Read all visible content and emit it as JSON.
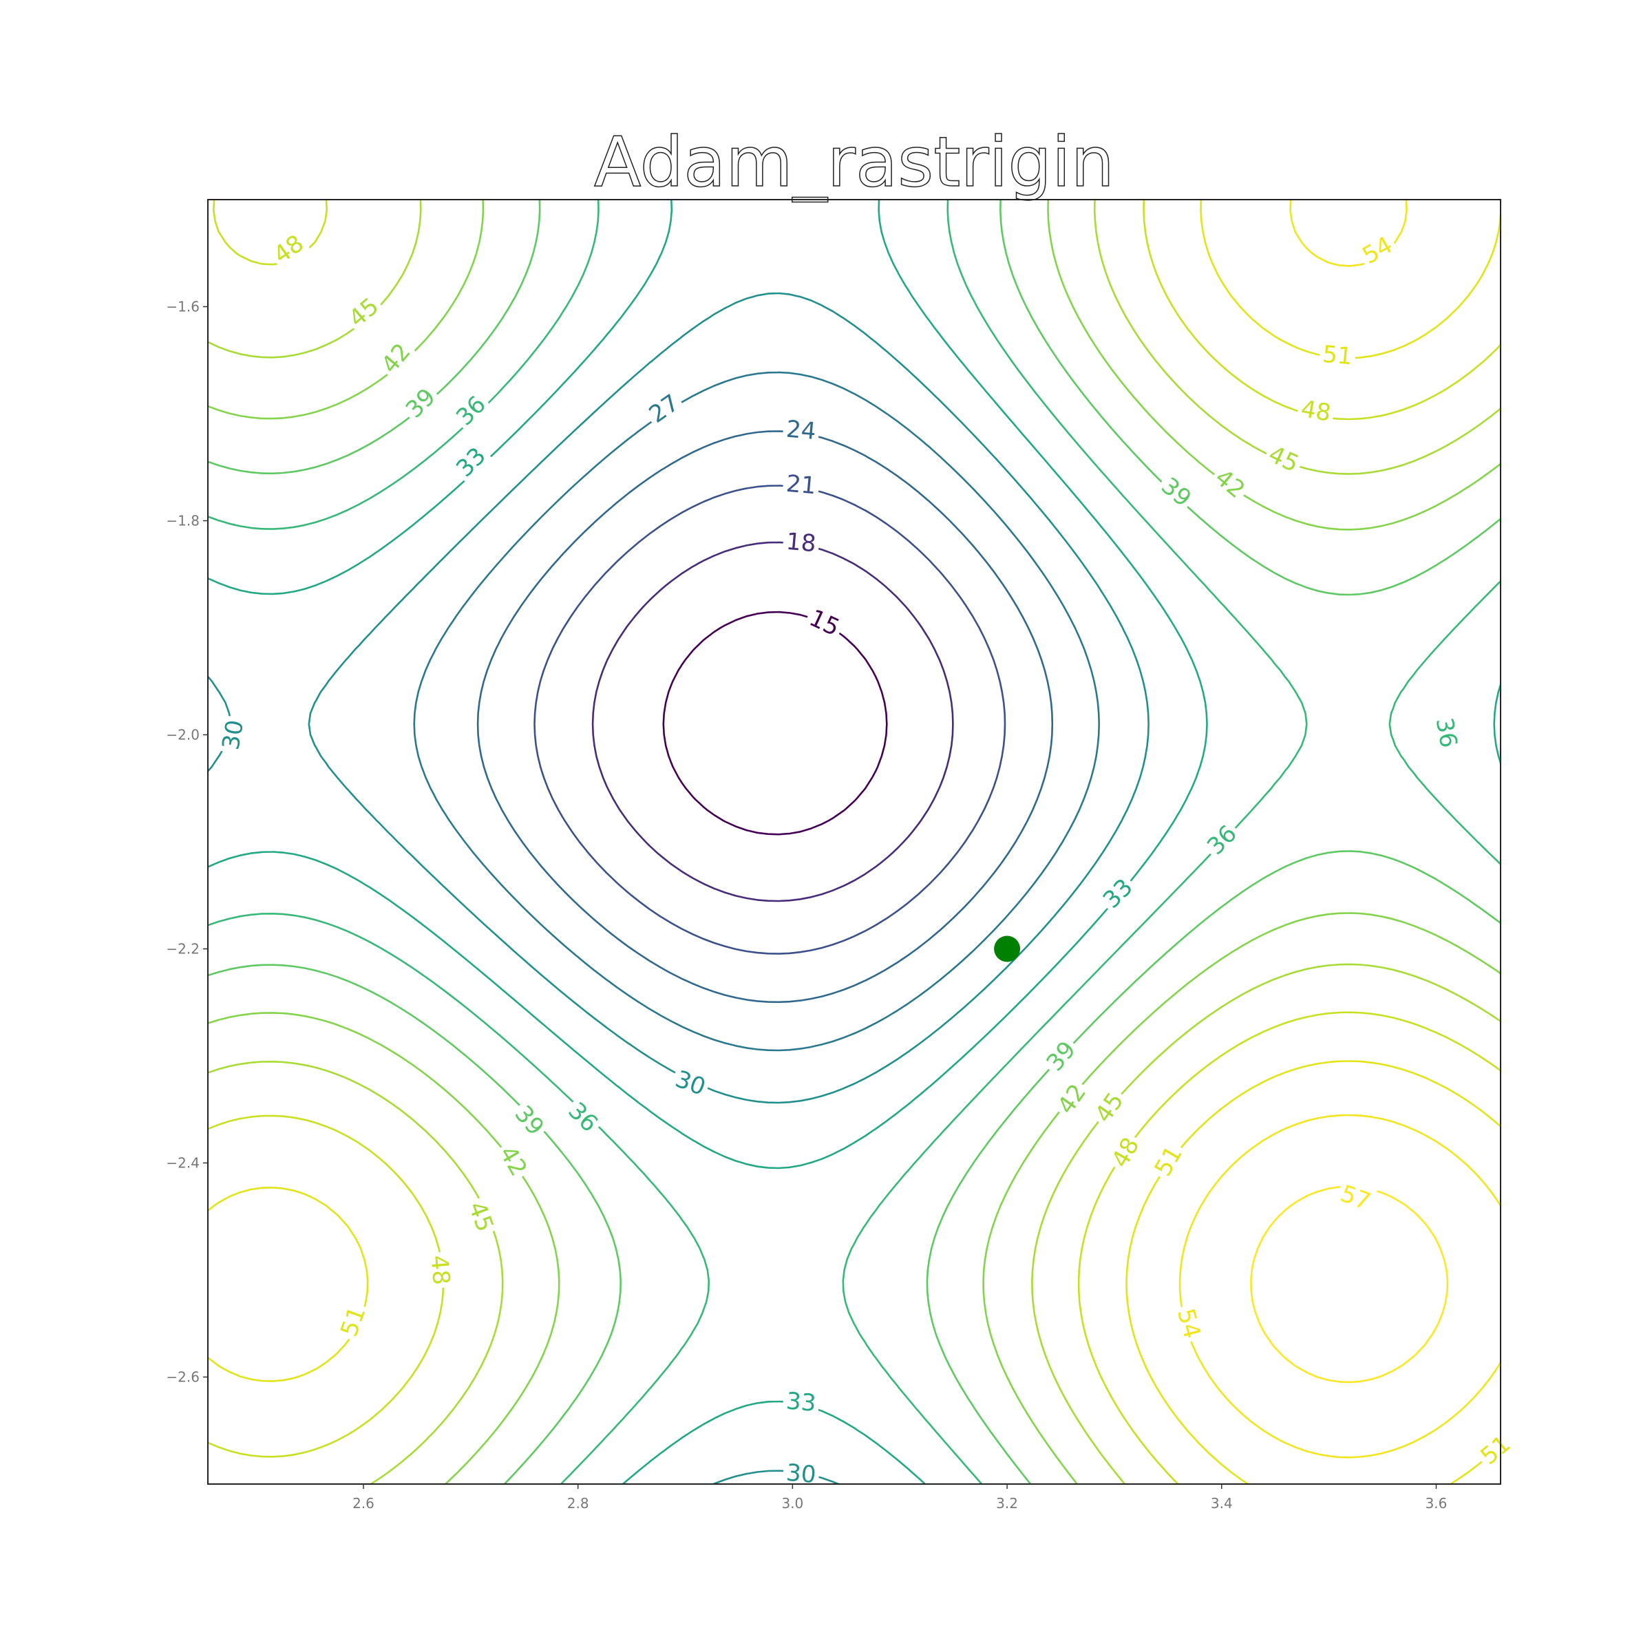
{
  "chart_data": {
    "type": "contour",
    "title": "Adam_rastrigin",
    "xlabel": "",
    "ylabel": "",
    "xlim": [
      2.455,
      3.66
    ],
    "ylim": [
      -2.7,
      -1.5
    ],
    "x_ticks": [
      2.6,
      2.8,
      3.0,
      3.2,
      3.4,
      3.6
    ],
    "x_tick_labels": [
      "2.6",
      "2.8",
      "3.0",
      "3.2",
      "3.4",
      "3.6"
    ],
    "y_ticks": [
      -1.6,
      -1.8,
      -2.0,
      -2.2,
      -2.4,
      -2.6
    ],
    "y_tick_labels": [
      "−1.6",
      "−1.8",
      "−2.0",
      "−2.2",
      "−2.4",
      "−2.6"
    ],
    "function": "rastrigin",
    "colormap": "viridis",
    "levels": [
      15,
      18,
      21,
      24,
      27,
      30,
      33,
      36,
      39,
      42,
      45,
      48,
      51,
      54,
      57
    ],
    "level_colors": {
      "15": "#440154",
      "18": "#472c7a",
      "21": "#3b518b",
      "24": "#31688e",
      "27": "#2a788e",
      "30": "#21908d",
      "33": "#22a884",
      "36": "#37b878",
      "39": "#5ec962",
      "42": "#84d44b",
      "45": "#a8db34",
      "48": "#c8e020",
      "51": "#e2e418",
      "54": "#f1e51d",
      "57": "#fde725"
    },
    "contour_labels": [
      {
        "level": "15",
        "x": 3.03,
        "y": -1.895,
        "angle": 25
      },
      {
        "level": "18",
        "x": 3.008,
        "y": -1.82,
        "angle": 5
      },
      {
        "level": "21",
        "x": 3.008,
        "y": -1.766,
        "angle": 5
      },
      {
        "level": "24",
        "x": 3.008,
        "y": -1.715,
        "angle": 5
      },
      {
        "level": "27",
        "x": 2.88,
        "y": -1.695,
        "angle": -35
      },
      {
        "level": "30",
        "x": 2.478,
        "y": -2.0,
        "angle": -80
      },
      {
        "level": "30",
        "x": 2.905,
        "y": -2.325,
        "angle": 20
      },
      {
        "level": "30",
        "x": 3.008,
        "y": -2.69,
        "angle": 5
      },
      {
        "level": "33",
        "x": 2.7,
        "y": -1.745,
        "angle": -45
      },
      {
        "level": "33",
        "x": 3.303,
        "y": -2.148,
        "angle": -45
      },
      {
        "level": "33",
        "x": 3.008,
        "y": -2.623,
        "angle": 5
      },
      {
        "level": "36",
        "x": 2.7,
        "y": -1.697,
        "angle": -45
      },
      {
        "level": "36",
        "x": 3.4,
        "y": -2.098,
        "angle": -45
      },
      {
        "level": "36",
        "x": 3.61,
        "y": -1.998,
        "angle": 80
      },
      {
        "level": "36",
        "x": 2.805,
        "y": -2.357,
        "angle": 45
      },
      {
        "level": "39",
        "x": 2.653,
        "y": -1.69,
        "angle": -45
      },
      {
        "level": "39",
        "x": 3.358,
        "y": -1.773,
        "angle": 40
      },
      {
        "level": "39",
        "x": 3.25,
        "y": -2.3,
        "angle": -50
      },
      {
        "level": "39",
        "x": 2.755,
        "y": -2.36,
        "angle": 50
      },
      {
        "level": "42",
        "x": 2.63,
        "y": -1.648,
        "angle": -50
      },
      {
        "level": "42",
        "x": 3.408,
        "y": -1.765,
        "angle": 40
      },
      {
        "level": "42",
        "x": 3.26,
        "y": -2.34,
        "angle": -55
      },
      {
        "level": "42",
        "x": 2.74,
        "y": -2.398,
        "angle": 60
      },
      {
        "level": "45",
        "x": 2.6,
        "y": -1.605,
        "angle": -40
      },
      {
        "level": "45",
        "x": 3.458,
        "y": -1.742,
        "angle": 25
      },
      {
        "level": "45",
        "x": 3.295,
        "y": -2.348,
        "angle": -55
      },
      {
        "level": "45",
        "x": 2.71,
        "y": -2.45,
        "angle": 70
      },
      {
        "level": "48",
        "x": 2.53,
        "y": -1.546,
        "angle": -35
      },
      {
        "level": "48",
        "x": 3.488,
        "y": -1.697,
        "angle": 10
      },
      {
        "level": "48",
        "x": 3.31,
        "y": -2.39,
        "angle": -60
      },
      {
        "level": "48",
        "x": 2.672,
        "y": -2.5,
        "angle": 85
      },
      {
        "level": "51",
        "x": 3.508,
        "y": -1.645,
        "angle": 5
      },
      {
        "level": "51",
        "x": 3.35,
        "y": -2.398,
        "angle": -60
      },
      {
        "level": "51",
        "x": 2.59,
        "y": -2.548,
        "angle": -70
      },
      {
        "level": "51",
        "x": 3.655,
        "y": -2.668,
        "angle": -40
      },
      {
        "level": "54",
        "x": 3.545,
        "y": -1.547,
        "angle": -30
      },
      {
        "level": "54",
        "x": 3.37,
        "y": -2.55,
        "angle": 75
      },
      {
        "level": "57",
        "x": 3.525,
        "y": -2.432,
        "angle": 20
      }
    ],
    "marker": {
      "x": 3.2,
      "y": -2.2,
      "color": "#008000"
    }
  }
}
